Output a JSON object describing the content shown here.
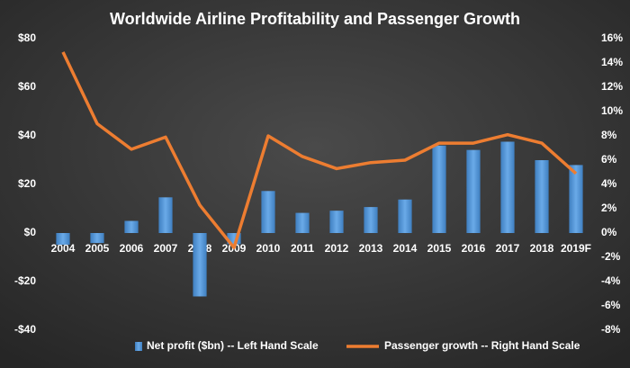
{
  "chart_data": {
    "type": "bar-line",
    "title": "Worldwide  Airline  Profitability  and  Passenger  Growth",
    "categories": [
      "2004",
      "2005",
      "2006",
      "2007",
      "2008",
      "2009",
      "2010",
      "2011",
      "2012",
      "2013",
      "2014",
      "2015",
      "2016",
      "2017",
      "2018",
      "2019F"
    ],
    "series": [
      {
        "name": "Net profit  ($bn) -- Left Hand Scale",
        "type": "bar",
        "axis": "y",
        "color": "#5b9bd5",
        "values": [
          -4.8,
          -4.1,
          5.0,
          14.7,
          -26.1,
          -4.6,
          17.3,
          8.3,
          9.2,
          10.7,
          13.8,
          36.0,
          34.2,
          37.6,
          30.0,
          28.0
        ]
      },
      {
        "name": "Passenger growth  -- Right Hand Scale",
        "type": "line",
        "axis": "y2",
        "color": "#ed7d31",
        "values": [
          14.9,
          9.0,
          6.9,
          7.9,
          2.3,
          -1.2,
          8.0,
          6.3,
          5.3,
          5.8,
          6.0,
          7.4,
          7.4,
          8.1,
          7.4,
          4.9
        ]
      }
    ],
    "ylim": [
      -40,
      80
    ],
    "yticks": [
      {
        "value": -40,
        "label": "-$40"
      },
      {
        "value": -20,
        "label": "-$20"
      },
      {
        "value": 0,
        "label": "$0"
      },
      {
        "value": 20,
        "label": "$20"
      },
      {
        "value": 40,
        "label": "$40"
      },
      {
        "value": 60,
        "label": "$60"
      },
      {
        "value": 80,
        "label": "$80"
      }
    ],
    "y2lim": [
      -8,
      16
    ],
    "y2ticks": [
      {
        "value": -8,
        "label": "-8%"
      },
      {
        "value": -6,
        "label": "-6%"
      },
      {
        "value": -4,
        "label": "-4%"
      },
      {
        "value": -2,
        "label": "-2%"
      },
      {
        "value": 0,
        "label": "0%"
      },
      {
        "value": 2,
        "label": "2%"
      },
      {
        "value": 4,
        "label": "4%"
      },
      {
        "value": 6,
        "label": "6%"
      },
      {
        "value": 8,
        "label": "8%"
      },
      {
        "value": 10,
        "label": "10%"
      },
      {
        "value": 12,
        "label": "12%"
      },
      {
        "value": 14,
        "label": "14%"
      },
      {
        "value": 16,
        "label": "16%"
      }
    ],
    "legend": "bottom"
  }
}
